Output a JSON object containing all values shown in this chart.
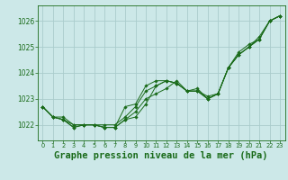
{
  "background_color": "#cce8e8",
  "grid_color": "#aacccc",
  "line_color": "#1a6b1a",
  "marker_color": "#1a6b1a",
  "title": "Graphe pression niveau de la mer (hPa)",
  "title_fontsize": 7.5,
  "title_color": "#1a6b1a",
  "xlim": [
    -0.5,
    23.5
  ],
  "ylim": [
    1021.4,
    1026.6
  ],
  "yticks": [
    1022,
    1023,
    1024,
    1025,
    1026
  ],
  "xticks": [
    0,
    1,
    2,
    3,
    4,
    5,
    6,
    7,
    8,
    9,
    10,
    11,
    12,
    13,
    14,
    15,
    16,
    17,
    18,
    19,
    20,
    21,
    22,
    23
  ],
  "series": [
    [
      1022.7,
      1022.3,
      1022.3,
      1022.0,
      1022.0,
      1022.0,
      1022.0,
      1022.0,
      1022.3,
      1022.7,
      1023.3,
      1023.5,
      1023.7,
      1023.6,
      1023.3,
      1023.3,
      1023.0,
      1023.2,
      1024.2,
      1024.7,
      1025.0,
      1025.3,
      1026.0,
      1026.2
    ],
    [
      1022.7,
      1022.3,
      1022.2,
      1022.0,
      1022.0,
      1022.0,
      1021.9,
      1021.9,
      1022.2,
      1022.3,
      1022.8,
      1023.5,
      1023.7,
      1023.6,
      1023.3,
      1023.3,
      1023.0,
      1023.2,
      1024.2,
      1024.7,
      1025.0,
      1025.3,
      1026.0,
      1026.2
    ],
    [
      1022.7,
      1022.3,
      1022.2,
      1021.9,
      1022.0,
      1022.0,
      1021.9,
      1021.9,
      1022.2,
      1022.5,
      1023.0,
      1023.2,
      1023.4,
      1023.7,
      1023.3,
      1023.3,
      1023.1,
      1023.2,
      1024.2,
      1024.8,
      1025.1,
      1025.3,
      1026.0,
      1026.2
    ],
    [
      1022.7,
      1022.3,
      1022.2,
      1021.9,
      1022.0,
      1022.0,
      1021.9,
      1021.9,
      1022.7,
      1022.8,
      1023.5,
      1023.7,
      1023.7,
      1023.6,
      1023.3,
      1023.4,
      1023.0,
      1023.2,
      1024.2,
      1024.7,
      1025.0,
      1025.4,
      1026.0,
      1026.2
    ]
  ]
}
